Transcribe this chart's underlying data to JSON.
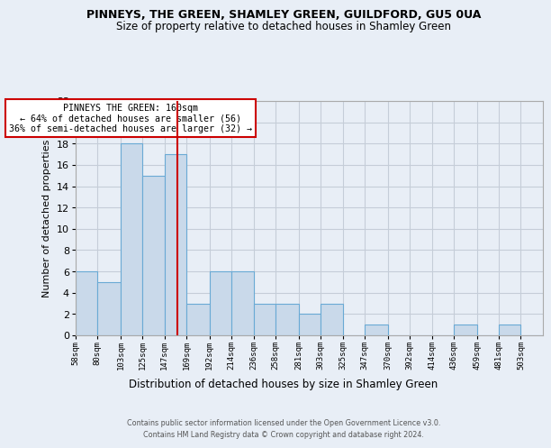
{
  "title": "PINNEYS, THE GREEN, SHAMLEY GREEN, GUILDFORD, GU5 0UA",
  "subtitle": "Size of property relative to detached houses in Shamley Green",
  "xlabel": "Distribution of detached houses by size in Shamley Green",
  "ylabel": "Number of detached properties",
  "footer1": "Contains HM Land Registry data © Crown copyright and database right 2024.",
  "footer2": "Contains public sector information licensed under the Open Government Licence v3.0.",
  "annotation_title": "PINNEYS THE GREEN: 160sqm",
  "annotation_line1": "← 64% of detached houses are smaller (56)",
  "annotation_line2": "36% of semi-detached houses are larger (32) →",
  "property_size": 160,
  "bar_color": "#c9d9ea",
  "bar_edge_color": "#6aaad5",
  "grid_color": "#c5cdd8",
  "background_color": "#e8eef6",
  "vline_color": "#cc0000",
  "annotation_box_color": "#ffffff",
  "annotation_box_edge": "#cc0000",
  "categories": [
    "58sqm",
    "80sqm",
    "103sqm",
    "125sqm",
    "147sqm",
    "169sqm",
    "192sqm",
    "214sqm",
    "236sqm",
    "258sqm",
    "281sqm",
    "303sqm",
    "325sqm",
    "347sqm",
    "370sqm",
    "392sqm",
    "414sqm",
    "436sqm",
    "459sqm",
    "481sqm",
    "503sqm"
  ],
  "values": [
    6,
    5,
    18,
    15,
    17,
    3,
    6,
    6,
    3,
    3,
    2,
    3,
    0,
    1,
    0,
    0,
    0,
    1,
    0,
    1,
    0
  ],
  "bin_edges": [
    58,
    80,
    103,
    125,
    147,
    169,
    192,
    214,
    236,
    258,
    281,
    303,
    325,
    347,
    370,
    392,
    414,
    436,
    459,
    481,
    503,
    525
  ],
  "ylim": [
    0,
    22
  ],
  "yticks": [
    0,
    2,
    4,
    6,
    8,
    10,
    12,
    14,
    16,
    18,
    20,
    22
  ]
}
